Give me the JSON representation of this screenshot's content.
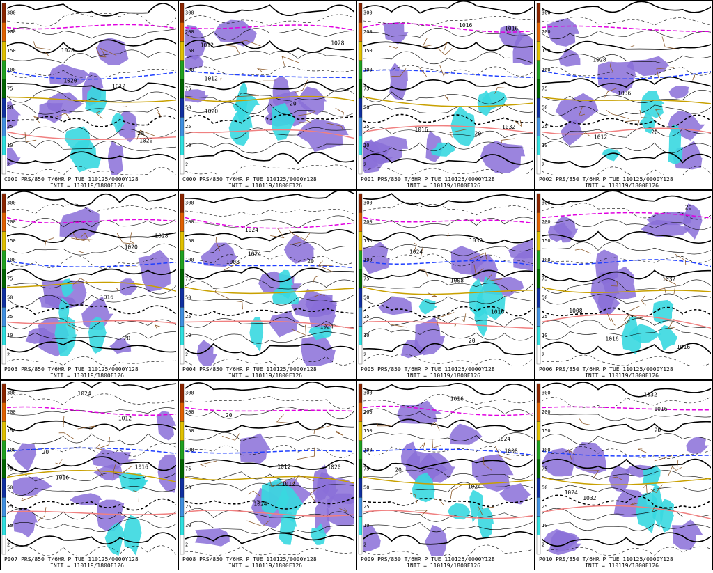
{
  "colorbar": [
    "300",
    "200",
    "150",
    "100",
    "75",
    "50",
    "25",
    "10",
    "2"
  ],
  "panels": [
    {
      "caption": "C000 PRS/850 T/6HR P TUE 110125/0000Y128",
      "init": "INIT = 110119/1800F126",
      "labels": [
        "1020",
        "1028",
        "1020",
        "1012",
        "20"
      ]
    },
    {
      "caption": "C000 PRS/850 T/6HR P TUE 110125/0000Y128",
      "init": "INIT = 110119/1800F126",
      "labels": [
        "1020",
        "1028",
        "1012",
        "1012",
        "20"
      ]
    },
    {
      "caption": "P001 PRS/850 T/6HR P TUE 110125/0000Y128",
      "init": "INIT = 110119/1800F126",
      "labels": [
        "1016",
        "1032",
        "1016",
        "1016",
        "20"
      ]
    },
    {
      "caption": "P002 PRS/850 T/6HR P TUE 110125/0000Y128",
      "init": "INIT = 110119/1800F126",
      "labels": [
        "1028",
        "1036",
        "1012",
        "20"
      ]
    },
    {
      "caption": "P003 PRS/850 T/6HR P TUE 110125/0000Y128",
      "init": "INIT = 110119/1800F126",
      "labels": [
        "1020",
        "1028",
        "1016",
        "20"
      ]
    },
    {
      "caption": "P004 PRS/850 T/6HR P TUE 110125/0000Y128",
      "init": "INIT = 110119/1800F126",
      "labels": [
        "1008",
        "1024",
        "1024",
        "1024",
        "20"
      ]
    },
    {
      "caption": "P005 PRS/850 T/6HR P TUE 110125/0000Y128",
      "init": "INIT = 110119/1800F126",
      "labels": [
        "1032",
        "1016",
        "1008",
        "1024",
        "20"
      ]
    },
    {
      "caption": "P006 PRS/850 T/6HR P TUE 110125/0000Y128",
      "init": "INIT = 110119/1800F126",
      "labels": [
        "1032",
        "1016",
        "1016",
        "1008",
        "20"
      ]
    },
    {
      "caption": "P007 PRS/850 T/6HR P TUE 110125/0000Y128",
      "init": "INIT = 110119/1800F126",
      "labels": [
        "1016",
        "1012",
        "1024",
        "1016",
        "20"
      ]
    },
    {
      "caption": "P008 PRS/850 T/6HR P TUE 110125/0000Y128",
      "init": "INIT = 110119/1800F126",
      "labels": [
        "1012",
        "1020",
        "1024",
        "1012",
        "20"
      ]
    },
    {
      "caption": "P009 PRS/850 T/6HR P TUE 110125/0000Y128",
      "init": "INIT = 110119/1800F126",
      "labels": [
        "1016",
        "1024",
        "1008",
        "1024",
        "20"
      ]
    },
    {
      "caption": "P010 PRS/850 T/6HR P TUE 110125/0000Y128",
      "init": "INIT = 110119/1800F126",
      "labels": [
        "1016",
        "1032",
        "1032",
        "1024",
        "20"
      ]
    }
  ]
}
